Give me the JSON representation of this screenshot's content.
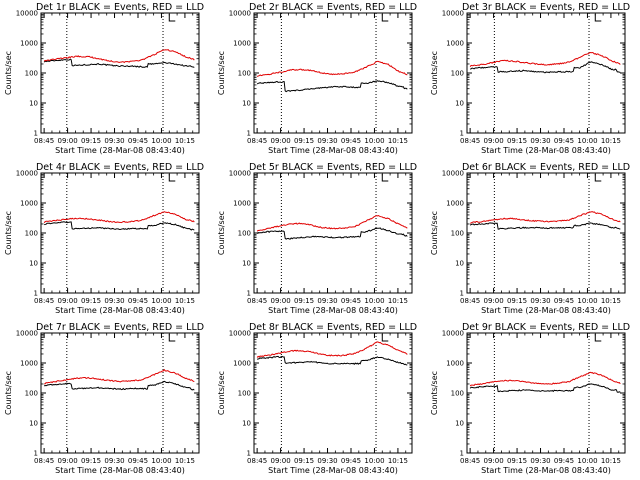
{
  "common": {
    "xticks": [
      "08:45",
      "09:00",
      "09:15",
      "09:30",
      "09:45",
      "10:00",
      "10:15"
    ],
    "yticks": [
      "1",
      "10",
      "100",
      "1000",
      "10000"
    ],
    "ylabel": "Counts/sec",
    "xlabel": "Start Time (28-Mar-08 08:43:40)",
    "events_color": "#000000",
    "lld_color": "#e00000"
  },
  "chart_data": [
    {
      "type": "line",
      "title": "Det 1r BLACK = Events, RED = LLD",
      "xlabel": "Start Time (28-Mar-08 08:43:40)",
      "ylabel": "Counts/sec",
      "ylog": true,
      "ylim": [
        1,
        10000
      ],
      "x": [
        "08:45",
        "08:52",
        "08:59",
        "09:06",
        "09:13",
        "09:20",
        "09:27",
        "09:34",
        "09:41",
        "09:48",
        "09:55",
        "10:02",
        "10:09",
        "10:16",
        "10:21"
      ],
      "series": [
        {
          "name": "Events",
          "color": "#000000",
          "values": [
            240,
            260,
            280,
            180,
            190,
            200,
            180,
            170,
            170,
            160,
            200,
            220,
            200,
            170,
            160
          ]
        },
        {
          "name": "LLD",
          "color": "#e00000",
          "values": [
            260,
            290,
            320,
            360,
            350,
            300,
            250,
            230,
            240,
            280,
            400,
            620,
            500,
            340,
            280
          ]
        }
      ]
    },
    {
      "type": "line",
      "title": "Det 2r BLACK = Events, RED = LLD",
      "xlabel": "Start Time (28-Mar-08 08:43:40)",
      "ylabel": "Counts/sec",
      "ylog": true,
      "ylim": [
        1,
        10000
      ],
      "x": [
        "08:45",
        "08:52",
        "08:59",
        "09:06",
        "09:13",
        "09:20",
        "09:27",
        "09:34",
        "09:41",
        "09:48",
        "09:55",
        "10:02",
        "10:09",
        "10:16",
        "10:21"
      ],
      "series": [
        {
          "name": "Events",
          "color": "#000000",
          "values": [
            45,
            48,
            50,
            25,
            27,
            30,
            32,
            35,
            35,
            33,
            45,
            55,
            48,
            35,
            30
          ]
        },
        {
          "name": "LLD",
          "color": "#e00000",
          "values": [
            80,
            90,
            105,
            125,
            130,
            120,
            100,
            90,
            95,
            110,
            160,
            240,
            190,
            110,
            90
          ]
        }
      ]
    },
    {
      "type": "line",
      "title": "Det 3r BLACK = Events, RED = LLD",
      "xlabel": "Start Time (28-Mar-08 08:43:40)",
      "ylabel": "Counts/sec",
      "ylog": true,
      "ylim": [
        1,
        10000
      ],
      "x": [
        "08:45",
        "08:52",
        "08:59",
        "09:06",
        "09:13",
        "09:20",
        "09:27",
        "09:34",
        "09:41",
        "09:48",
        "09:55",
        "10:02",
        "10:09",
        "10:16",
        "10:21"
      ],
      "series": [
        {
          "name": "Events",
          "color": "#000000",
          "values": [
            140,
            150,
            160,
            110,
            115,
            120,
            110,
            105,
            110,
            110,
            150,
            230,
            190,
            130,
            110
          ]
        },
        {
          "name": "LLD",
          "color": "#e00000",
          "values": [
            170,
            190,
            220,
            260,
            250,
            220,
            200,
            190,
            200,
            230,
            330,
            480,
            380,
            250,
            200
          ]
        }
      ]
    },
    {
      "type": "line",
      "title": "Det 4r BLACK = Events, RED = LLD",
      "xlabel": "Start Time (28-Mar-08 08:43:40)",
      "ylabel": "Counts/sec",
      "ylog": true,
      "ylim": [
        1,
        10000
      ],
      "x": [
        "08:45",
        "08:52",
        "08:59",
        "09:06",
        "09:13",
        "09:20",
        "09:27",
        "09:34",
        "09:41",
        "09:48",
        "09:55",
        "10:02",
        "10:09",
        "10:16",
        "10:21"
      ],
      "series": [
        {
          "name": "Events",
          "color": "#000000",
          "values": [
            200,
            215,
            230,
            140,
            145,
            150,
            140,
            135,
            140,
            140,
            175,
            220,
            190,
            140,
            130
          ]
        },
        {
          "name": "LLD",
          "color": "#e00000",
          "values": [
            230,
            260,
            290,
            310,
            300,
            270,
            240,
            230,
            240,
            270,
            380,
            520,
            420,
            280,
            240
          ]
        }
      ]
    },
    {
      "type": "line",
      "title": "Det 5r BLACK = Events, RED = LLD",
      "xlabel": "Start Time (28-Mar-08 08:43:40)",
      "ylabel": "Counts/sec",
      "ylog": true,
      "ylim": [
        1,
        10000
      ],
      "x": [
        "08:45",
        "08:52",
        "08:59",
        "09:06",
        "09:13",
        "09:20",
        "09:27",
        "09:34",
        "09:41",
        "09:48",
        "09:55",
        "10:02",
        "10:09",
        "10:16",
        "10:21"
      ],
      "series": [
        {
          "name": "Events",
          "color": "#000000",
          "values": [
            100,
            110,
            115,
            65,
            70,
            75,
            75,
            70,
            72,
            75,
            110,
            150,
            120,
            90,
            80
          ]
        },
        {
          "name": "LLD",
          "color": "#e00000",
          "values": [
            120,
            140,
            170,
            200,
            210,
            180,
            150,
            140,
            145,
            170,
            260,
            380,
            300,
            190,
            150
          ]
        }
      ]
    },
    {
      "type": "line",
      "title": "Det 6r BLACK = Events, RED = LLD",
      "xlabel": "Start Time (28-Mar-08 08:43:40)",
      "ylabel": "Counts/sec",
      "ylog": true,
      "ylim": [
        1,
        10000
      ],
      "x": [
        "08:45",
        "08:52",
        "08:59",
        "09:06",
        "09:13",
        "09:20",
        "09:27",
        "09:34",
        "09:41",
        "09:48",
        "09:55",
        "10:02",
        "10:09",
        "10:16",
        "10:21"
      ],
      "series": [
        {
          "name": "Events",
          "color": "#000000",
          "values": [
            190,
            200,
            210,
            140,
            145,
            150,
            150,
            145,
            150,
            150,
            180,
            210,
            190,
            150,
            140
          ]
        },
        {
          "name": "LLD",
          "color": "#e00000",
          "values": [
            220,
            240,
            270,
            300,
            300,
            270,
            250,
            240,
            250,
            270,
            370,
            520,
            420,
            290,
            240
          ]
        }
      ]
    },
    {
      "type": "line",
      "title": "Det 7r BLACK = Events, RED = LLD",
      "xlabel": "Start Time (28-Mar-08 08:43:40)",
      "ylabel": "Counts/sec",
      "ylog": true,
      "ylim": [
        1,
        10000
      ],
      "x": [
        "08:45",
        "08:52",
        "08:59",
        "09:06",
        "09:13",
        "09:20",
        "09:27",
        "09:34",
        "09:41",
        "09:48",
        "09:55",
        "10:02",
        "10:09",
        "10:16",
        "10:21"
      ],
      "series": [
        {
          "name": "Events",
          "color": "#000000",
          "values": [
            180,
            190,
            205,
            140,
            145,
            150,
            140,
            135,
            140,
            140,
            180,
            240,
            200,
            150,
            130
          ]
        },
        {
          "name": "LLD",
          "color": "#e00000",
          "values": [
            210,
            240,
            270,
            310,
            320,
            290,
            260,
            240,
            250,
            280,
            400,
            580,
            460,
            300,
            250
          ]
        }
      ]
    },
    {
      "type": "line",
      "title": "Det 8r BLACK = Events, RED = LLD",
      "xlabel": "Start Time (28-Mar-08 08:43:40)",
      "ylabel": "Counts/sec",
      "ylog": true,
      "ylim": [
        1,
        10000
      ],
      "x": [
        "08:45",
        "08:52",
        "08:59",
        "09:06",
        "09:13",
        "09:20",
        "09:27",
        "09:34",
        "09:41",
        "09:48",
        "09:55",
        "10:02",
        "10:09",
        "10:16",
        "10:21"
      ],
      "series": [
        {
          "name": "Events",
          "color": "#000000",
          "values": [
            1400,
            1500,
            1600,
            1000,
            1050,
            1100,
            1000,
            950,
            950,
            950,
            1200,
            1600,
            1300,
            1000,
            900
          ]
        },
        {
          "name": "LLD",
          "color": "#e00000",
          "values": [
            1600,
            1800,
            2100,
            2500,
            2600,
            2300,
            1900,
            1750,
            1800,
            2100,
            3200,
            5000,
            3900,
            2500,
            2000
          ]
        }
      ]
    },
    {
      "type": "line",
      "title": "Det 9r BLACK = Events, RED = LLD",
      "xlabel": "Start Time (28-Mar-08 08:43:40)",
      "ylabel": "Counts/sec",
      "ylog": true,
      "ylim": [
        1,
        10000
      ],
      "x": [
        "08:45",
        "08:52",
        "08:59",
        "09:06",
        "09:13",
        "09:20",
        "09:27",
        "09:34",
        "09:41",
        "09:48",
        "09:55",
        "10:02",
        "10:09",
        "10:16",
        "10:21"
      ],
      "series": [
        {
          "name": "Events",
          "color": "#000000",
          "values": [
            150,
            160,
            170,
            115,
            120,
            125,
            120,
            115,
            120,
            120,
            155,
            200,
            170,
            125,
            110
          ]
        },
        {
          "name": "LLD",
          "color": "#e00000",
          "values": [
            180,
            200,
            230,
            260,
            260,
            240,
            210,
            200,
            210,
            240,
            340,
            490,
            390,
            260,
            210
          ]
        }
      ]
    }
  ]
}
